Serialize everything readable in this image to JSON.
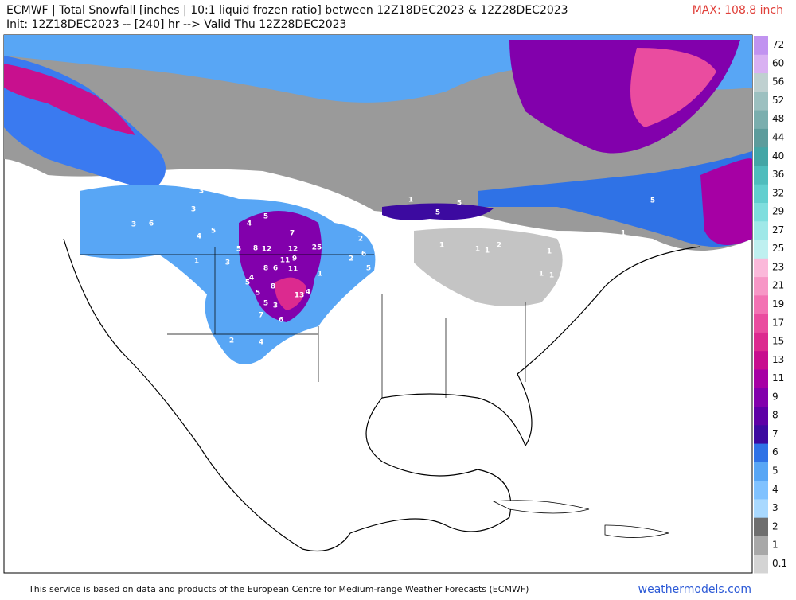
{
  "header": {
    "title": "ECMWF | Total Snowfall [inches | 10:1 liquid frozen ratio] between 12Z18DEC2023 & 12Z28DEC2023",
    "subtitle": "Init: 12Z18DEC2023 -- [240] hr --> Valid Thu 12Z28DEC2023",
    "max": "MAX: 108.8 inch"
  },
  "colorbar": {
    "ticks": [
      0.1,
      1,
      2,
      3,
      4,
      5,
      6,
      7,
      8,
      9,
      11,
      13,
      15,
      17,
      19,
      21,
      23,
      25,
      27,
      29,
      32,
      36,
      40,
      44,
      48,
      52,
      56,
      60,
      72
    ],
    "colors": [
      "#d4d4d4",
      "#a8a8a8",
      "#6e6e6e",
      "#a9d9ff",
      "#80c2ff",
      "#58a6f5",
      "#2f72e6",
      "#3c0aa0",
      "#5e00a6",
      "#8200ac",
      "#a600a4",
      "#c80d8e",
      "#dc2a8f",
      "#ea4c9f",
      "#f372b3",
      "#f797c6",
      "#fbb9da",
      "#bff0f0",
      "#9fe8e8",
      "#7fdede",
      "#62cfcf",
      "#4fbdbd",
      "#44a6a6",
      "#5d9c9c",
      "#7aaeae",
      "#9cc0c0",
      "#bfd0d0",
      "#d9b1f2",
      "#c193f0"
    ]
  },
  "map_labels": [
    "2",
    "3",
    "3",
    "3",
    "6",
    "5",
    "1",
    "5",
    "4",
    "7",
    "8",
    "12",
    "12",
    "5",
    "3",
    "9",
    "6",
    "8",
    "11",
    "11",
    "5",
    "8",
    "5",
    "13",
    "4",
    "5",
    "3",
    "7",
    "6",
    "4",
    "2",
    "25",
    "8",
    "2",
    "6",
    "2",
    "5",
    "5",
    "5",
    "1",
    "1",
    "1",
    "2",
    "1",
    "1",
    "1",
    "1",
    "5",
    "1",
    "1",
    "4",
    "4",
    "1",
    "1"
  ],
  "footer": {
    "notice": "This service is based on data and products of the European Centre for Medium-range Weather Forecasts (ECMWF)",
    "site": "weathermodels.com"
  }
}
